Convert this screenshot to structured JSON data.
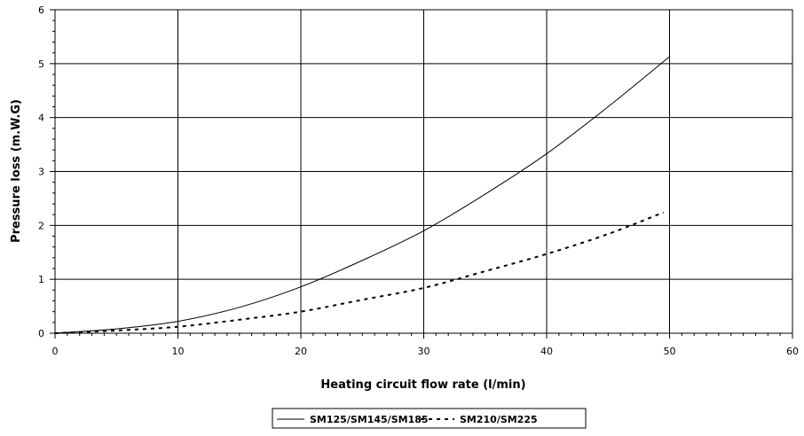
{
  "chart_data": {
    "type": "line",
    "title": "",
    "xlabel": "Heating circuit flow rate (l/min)",
    "ylabel": "Pressure loss (m.W.G)",
    "xlim": [
      0,
      60
    ],
    "ylim": [
      0,
      6
    ],
    "x_ticks": [
      "0",
      "10",
      "20",
      "30",
      "40",
      "50",
      "60"
    ],
    "y_ticks": [
      "0",
      "1",
      "2",
      "3",
      "4",
      "5",
      "6"
    ],
    "grid": true,
    "legend_position": "bottom-center",
    "series": [
      {
        "name": "SM125/SM145/SM185",
        "style": "solid",
        "color": "#000000",
        "x": [
          0,
          5,
          10,
          15,
          20,
          25,
          30,
          35,
          40,
          45,
          50
        ],
        "y": [
          0,
          0.08,
          0.22,
          0.48,
          0.86,
          1.35,
          1.9,
          2.58,
          3.33,
          4.2,
          5.13
        ]
      },
      {
        "name": "SM210/SM225",
        "style": "dashed",
        "color": "#000000",
        "x": [
          0,
          5,
          10,
          15,
          20,
          25,
          30,
          35,
          40,
          45,
          49.5
        ],
        "y": [
          0,
          0.05,
          0.12,
          0.25,
          0.4,
          0.62,
          0.84,
          1.15,
          1.47,
          1.84,
          2.24
        ]
      }
    ]
  }
}
